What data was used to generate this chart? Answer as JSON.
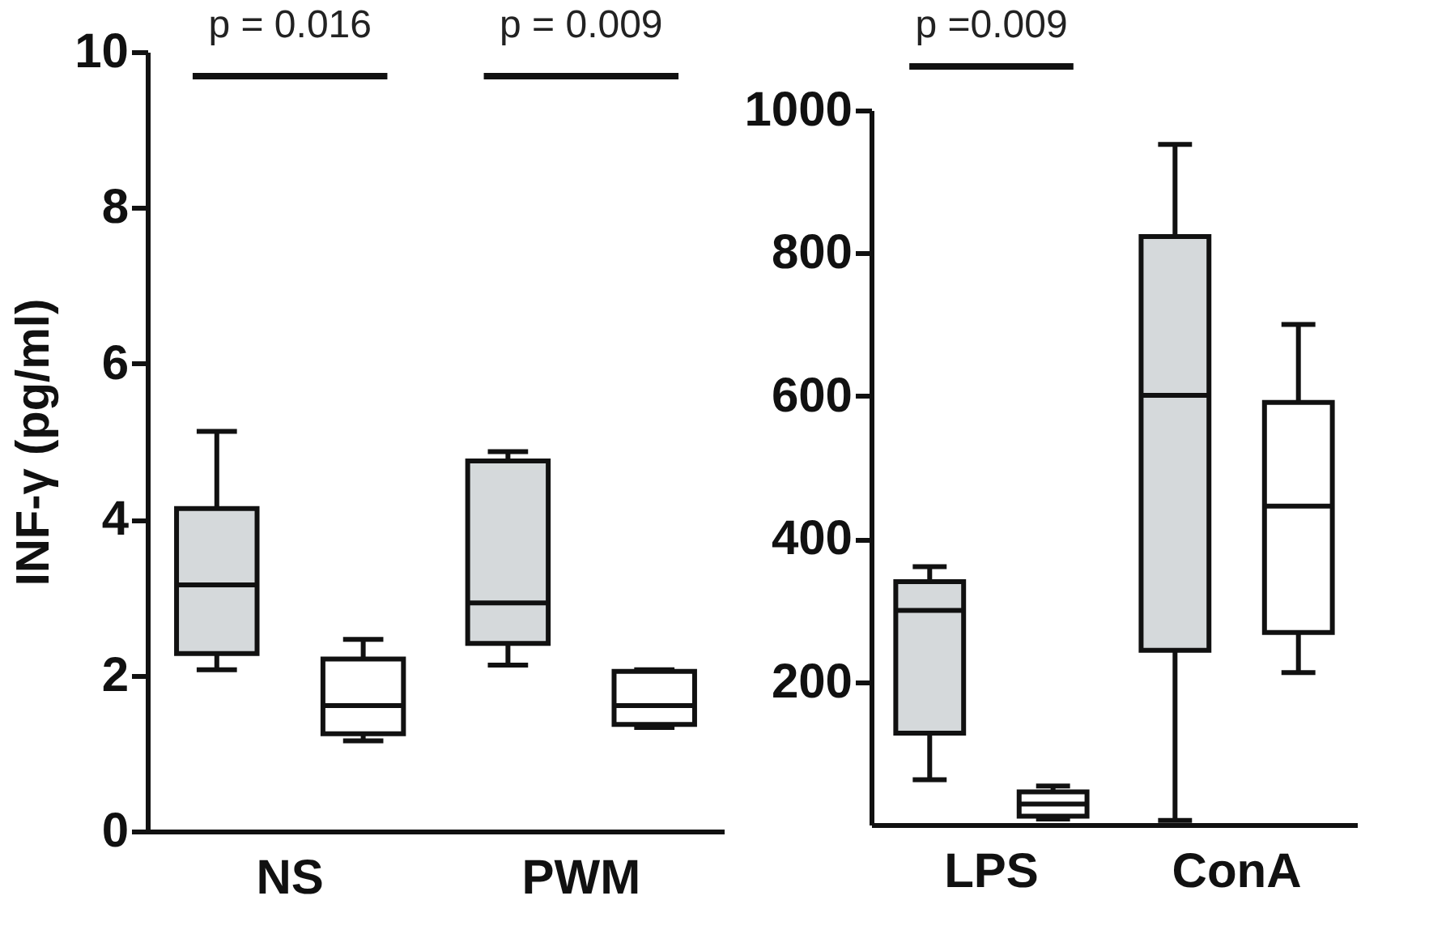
{
  "chart_data": [
    {
      "type": "box",
      "ylabel": "INF-γ (pg/ml)",
      "categories": [
        "NS",
        "PWM"
      ],
      "ylim": [
        0,
        10
      ],
      "yticks": [
        0,
        2,
        4,
        6,
        8,
        10
      ],
      "annotations": [
        "p = 0.016",
        "p = 0.009"
      ],
      "series": [
        {
          "color": "#d5d9db",
          "boxes": [
            {
              "low": 2.07,
              "q1": 2.28,
              "median": 3.16,
              "q3": 4.14,
              "high": 5.13
            },
            {
              "low": 2.13,
              "q1": 2.41,
              "median": 2.93,
              "q3": 4.75,
              "high": 4.87
            }
          ]
        },
        {
          "color": "#ffffff",
          "boxes": [
            {
              "low": 1.16,
              "q1": 1.25,
              "median": 1.61,
              "q3": 2.21,
              "high": 2.46
            },
            {
              "low": 1.33,
              "q1": 1.37,
              "median": 1.61,
              "q3": 2.05,
              "high": 2.07
            }
          ]
        }
      ]
    },
    {
      "type": "box",
      "categories": [
        "LPS",
        "ConA"
      ],
      "ylim": [
        0,
        1000
      ],
      "yticks": [
        200,
        400,
        600,
        800,
        1000
      ],
      "annotations": [
        "p =0.009"
      ],
      "series": [
        {
          "color": "#d5d9db",
          "boxes": [
            {
              "low": 63,
              "q1": 128,
              "median": 300,
              "q3": 340,
              "high": 361
            },
            {
              "low": 6,
              "q1": 244,
              "median": 601,
              "q3": 823,
              "high": 952
            }
          ]
        },
        {
          "color": "#ffffff",
          "boxes": [
            {
              "low": 8,
              "q1": 12,
              "median": 29,
              "q3": 46,
              "high": 54
            },
            {
              "low": 213,
              "q1": 269,
              "median": 446,
              "q3": 591,
              "high": 700
            }
          ]
        }
      ]
    }
  ]
}
